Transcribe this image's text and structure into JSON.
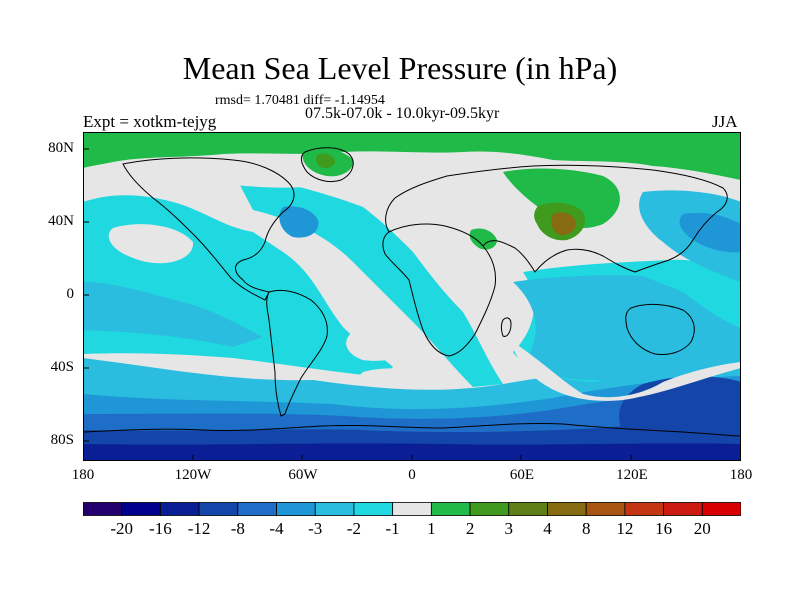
{
  "title": "Mean Sea Level Pressure (in hPa)",
  "stats_text": "rmsd= 1.70481 diff= -1.14954",
  "period_text": "07.5k-07.0k - 10.0kyr-09.5kyr",
  "experiment_label": "Expt = xotkm-tejyg",
  "season_label": "JJA",
  "latitude_labels": [
    "80N",
    "40N",
    "0",
    "40S",
    "80S"
  ],
  "longitude_labels": [
    "180",
    "120W",
    "60W",
    "0",
    "60E",
    "120E",
    "180"
  ],
  "colorbar": {
    "labels": [
      "-20",
      "-16",
      "-12",
      "-8",
      "-4",
      "-3",
      "-2",
      "-1",
      "1",
      "2",
      "3",
      "4",
      "8",
      "12",
      "16",
      "20"
    ],
    "colors": [
      "#23006e",
      "#00008c",
      "#0a1e96",
      "#1446aa",
      "#1e6ec8",
      "#1f96d6",
      "#2abde0",
      "#20d8e0",
      "#e6e6e6",
      "#1fba48",
      "#3f9a1e",
      "#5e7f16",
      "#866b10",
      "#a85511",
      "#c43512",
      "#cd1a10",
      "#d80000"
    ]
  },
  "field_colors": {
    "neutral": "#e6e6e6",
    "minus_1_to_2": "#20d8e0",
    "minus_2_to_3": "#2abde0",
    "minus_3_to_4": "#1f96d6",
    "minus_4_to_8": "#1e6ec8",
    "minus_8_to_12": "#1446aa",
    "minus_12_to_16": "#0a1e96",
    "plus_1_to_2": "#1fba48",
    "plus_2_to_3": "#3f9a1e",
    "plus_3_to_4": "#5e7f16",
    "plus_4_to_8": "#866b10"
  }
}
